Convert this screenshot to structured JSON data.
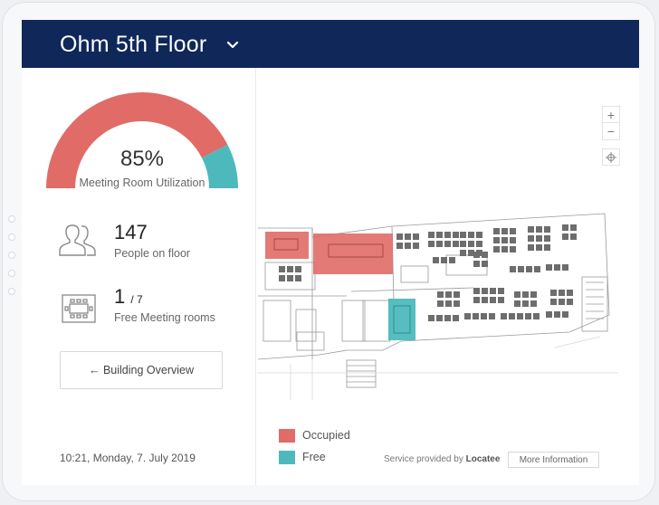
{
  "header": {
    "title": "Ohm 5th Floor",
    "dropdown_icon": "chevron-down-icon"
  },
  "colors": {
    "header_bg": "#10275a",
    "occupied": "#e06b67",
    "free": "#4db9bd",
    "desk": "#6d6d6d"
  },
  "gauge": {
    "value_percent": 85,
    "value_text": "85%",
    "label": "Meeting Room Utilization"
  },
  "stats": {
    "people": {
      "value": "147",
      "label": "People on floor",
      "icon": "people-icon"
    },
    "rooms": {
      "value": "1",
      "total": "/ 7",
      "label": "Free Meeting rooms",
      "icon": "meeting-table-icon"
    }
  },
  "buttons": {
    "building_overview": "← Building Overview",
    "more_information": "More Information"
  },
  "timestamp": "10:21, Monday, 7. July 2019",
  "map_controls": {
    "zoom_in": "+",
    "zoom_out": "−",
    "locate_icon": "crosshair-icon"
  },
  "legend": [
    {
      "label": "Occupied",
      "color": "#e06b67"
    },
    {
      "label": "Free",
      "color": "#4db9bd"
    }
  ],
  "footer": {
    "service_prefix": "Service provided by",
    "service_brand": "Locatee"
  }
}
